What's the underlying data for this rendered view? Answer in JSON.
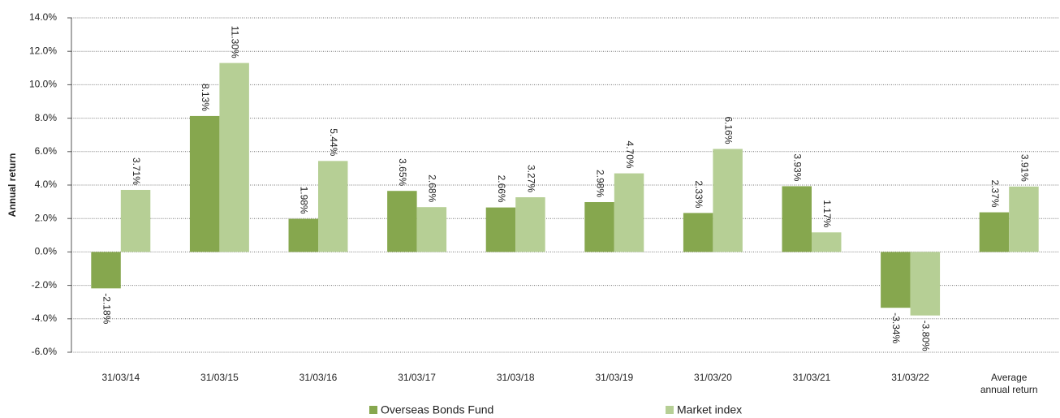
{
  "chart_data": {
    "type": "bar",
    "y_label": "Annual return",
    "categories": [
      "31/03/14",
      "31/03/15",
      "31/03/16",
      "31/03/17",
      "31/03/18",
      "31/03/19",
      "31/03/20",
      "31/03/21",
      "31/03/22",
      "Average annual return"
    ],
    "series": [
      {
        "name": "Overseas Bonds Fund",
        "color": "#86a74e",
        "values": [
          -2.18,
          8.13,
          1.98,
          3.65,
          2.66,
          2.98,
          2.33,
          3.93,
          -3.34,
          2.37
        ],
        "value_labels": [
          "-2.18%",
          "8.13%",
          "1.98%",
          "3.65%",
          "2.66%",
          "2.98%",
          "2.33%",
          "3.93%",
          "-3.34%",
          "2.37%"
        ]
      },
      {
        "name": "Market index",
        "color": "#b6cf95",
        "values": [
          3.71,
          11.3,
          5.44,
          2.68,
          3.27,
          4.7,
          6.16,
          1.17,
          -3.8,
          3.91
        ],
        "value_labels": [
          "3.71%",
          "11.30%",
          "5.44%",
          "2.68%",
          "3.27%",
          "4.70%",
          "6.16%",
          "1.17%",
          "-3.80%",
          "3.91%"
        ]
      }
    ],
    "ylim": [
      -6,
      14
    ],
    "yticks": [
      {
        "value": -6,
        "label": "-6.0%"
      },
      {
        "value": -4,
        "label": "-4.0%"
      },
      {
        "value": -2,
        "label": "-2.0%"
      },
      {
        "value": 0,
        "label": "0.0%"
      },
      {
        "value": 2,
        "label": "2.0%"
      },
      {
        "value": 4,
        "label": "4.0%"
      },
      {
        "value": 6,
        "label": "6.0%"
      },
      {
        "value": 8,
        "label": "8.0%"
      },
      {
        "value": 10,
        "label": "10.0%"
      },
      {
        "value": 12,
        "label": "12.0%"
      },
      {
        "value": 14,
        "label": "14.0%"
      }
    ],
    "grid": true
  }
}
